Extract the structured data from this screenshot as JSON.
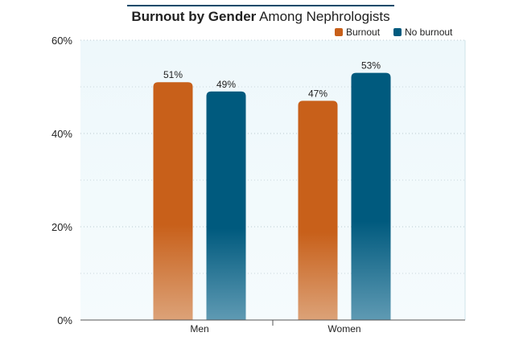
{
  "title": {
    "bold": "Burnout by Gender",
    "rest": " Among Nephrologists"
  },
  "chart_data": {
    "type": "bar",
    "title": "Burnout by Gender Among Nephrologists",
    "categories": [
      "Men",
      "Women"
    ],
    "series": [
      {
        "name": "Burnout",
        "values": [
          51,
          47
        ],
        "labels": [
          "51%",
          "47%"
        ],
        "color": "#c8601a",
        "light": "#dca278"
      },
      {
        "name": "No burnout",
        "values": [
          49,
          53
        ],
        "labels": [
          "49%",
          "53%"
        ],
        "color": "#005a7e",
        "light": "#5f9ab3"
      }
    ],
    "y_ticks": [
      0,
      20,
      40,
      60
    ],
    "y_tick_labels": [
      "0%",
      "20%",
      "40%",
      "60%"
    ],
    "ylim": [
      0,
      60
    ],
    "minor_gridlines": [
      10,
      30,
      50
    ],
    "xlabel": "",
    "ylabel": "",
    "legend_position": "top-right",
    "grid": true
  }
}
